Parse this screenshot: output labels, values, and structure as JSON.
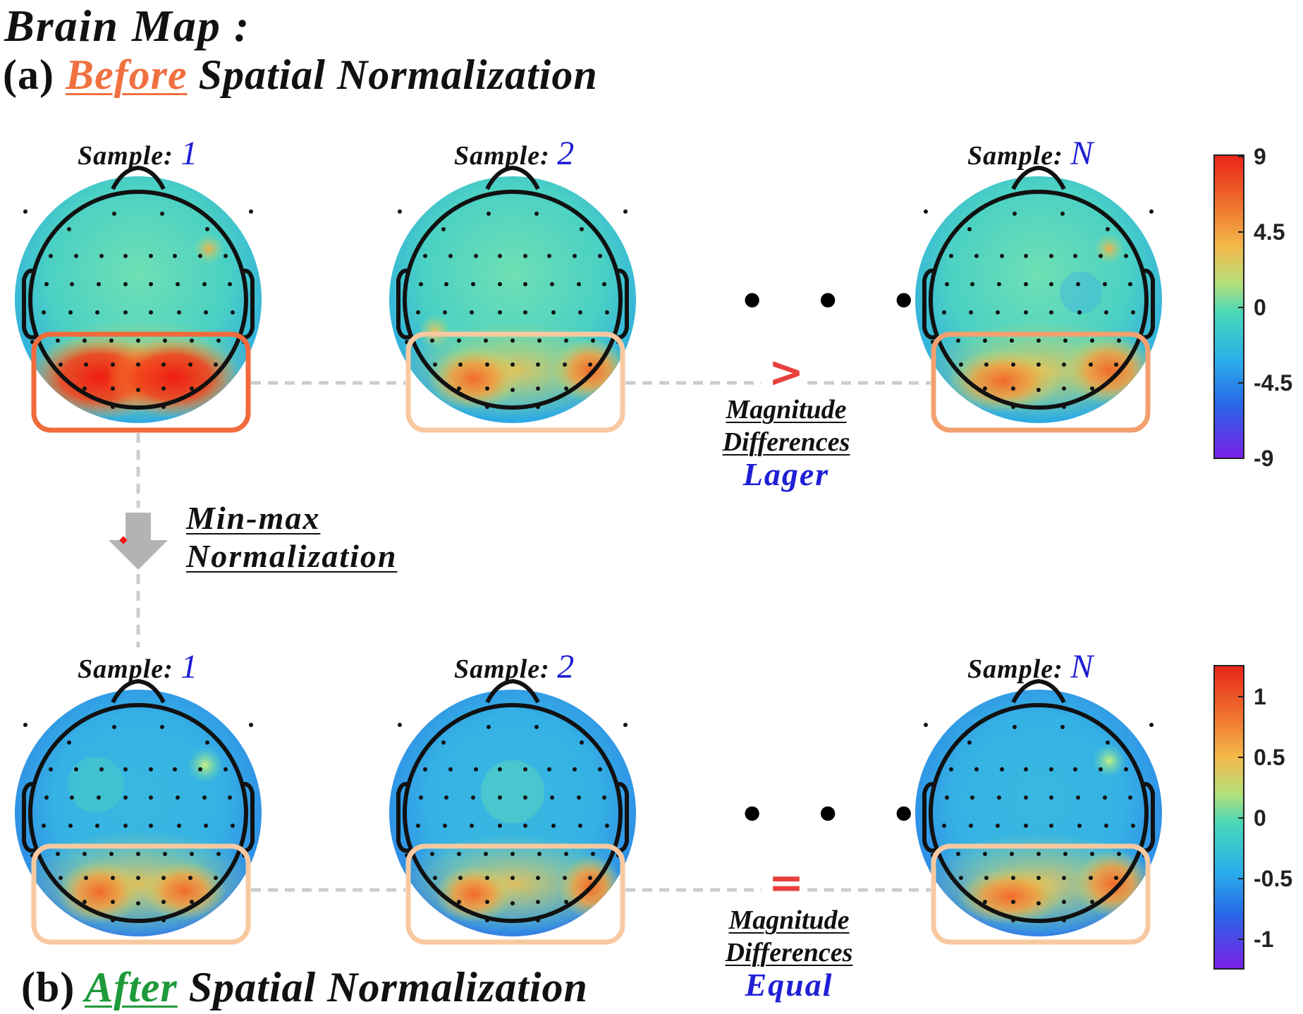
{
  "title": "Brain Map :",
  "section_a": {
    "prefix": "(a)",
    "keyword": "Before",
    "rest": "Spatial Normalization",
    "keyword_color": "#f07040"
  },
  "section_b": {
    "prefix": "(b)",
    "keyword": "After",
    "rest": "Spatial Normalization",
    "keyword_color": "#1e9a3a"
  },
  "samples": [
    {
      "label": "Sample:",
      "num": "1"
    },
    {
      "label": "Sample:",
      "num": "2"
    },
    {
      "label": "Sample:",
      "num": "N"
    }
  ],
  "ellipsis": "• • •",
  "compare_a": {
    "symbol": ">",
    "line1": "Magnitude",
    "line2": "Differences",
    "result": "Lager"
  },
  "compare_b": {
    "symbol": "=",
    "line1": "Magnitude",
    "line2": "Differences",
    "result": "Equal"
  },
  "arrow_label": {
    "line1": "Min-max",
    "line2": "Normalization"
  },
  "colorbar_a": {
    "ticks": [
      "9",
      "4.5",
      "0",
      "-4.5",
      "-9"
    ]
  },
  "colorbar_b": {
    "ticks": [
      "1",
      "0.5",
      "0",
      "-0.5",
      "-1"
    ]
  },
  "colors": {
    "box_strong": "#f06a3c",
    "box_light": "#f8c9a0",
    "box_medium": "#f3a070",
    "connector": "#cccccc",
    "symbol_red": "#e8403c",
    "text_blue": "#1f1fd6"
  }
}
